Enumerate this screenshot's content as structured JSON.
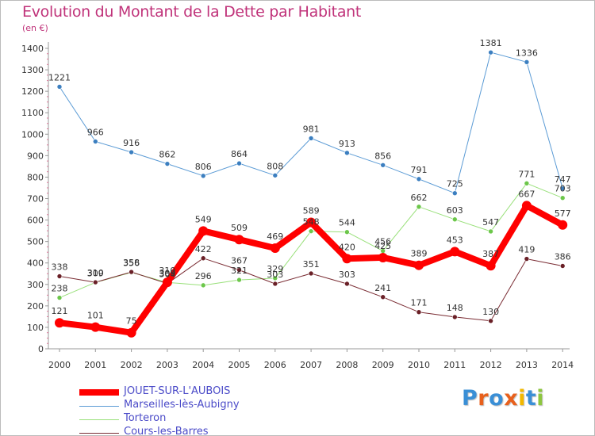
{
  "header": {
    "title": "Evolution du Montant de la Dette par Habitant",
    "unit": "(en €)"
  },
  "logo": {
    "text": "Proxiti",
    "colors": [
      "#3a8fd6",
      "#e8601c",
      "#3a8fd6",
      "#e8601c",
      "#f2b800",
      "#3a8fd6",
      "#8dc63f"
    ]
  },
  "chart_data": {
    "type": "line",
    "title": "Evolution du Montant de la Dette par Habitant",
    "ylabel": "(en €)",
    "xlabel": "",
    "ylim": [
      0,
      1400
    ],
    "yticks": [
      0,
      100,
      200,
      300,
      400,
      500,
      600,
      700,
      800,
      900,
      1000,
      1100,
      1200,
      1300,
      1400
    ],
    "grid": false,
    "legend_position": "bottom-left",
    "categories": [
      "2000",
      "2001",
      "2002",
      "2003",
      "2004",
      "2005",
      "2006",
      "2007",
      "2008",
      "2009",
      "2010",
      "2011",
      "2012",
      "2013",
      "2014"
    ],
    "series": [
      {
        "name": "Marseilles-lès-Aubigny",
        "color": "#5b9bd5",
        "dot": "#3c7fc0",
        "width": 1,
        "values": [
          1221,
          966,
          916,
          862,
          806,
          864,
          808,
          981,
          913,
          856,
          791,
          725,
          1381,
          1336,
          747
        ]
      },
      {
        "name": "Torteron",
        "color": "#99e07a",
        "dot": "#6cc74a",
        "width": 1,
        "values": [
          238,
          309,
          356,
          309,
          296,
          321,
          329,
          548,
          544,
          456,
          662,
          603,
          547,
          771,
          703
        ]
      },
      {
        "name": "Cours-les-Barres",
        "color": "#7a2c33",
        "dot": "#6a2027",
        "width": 1,
        "values": [
          338,
          310,
          358,
          304,
          422,
          367,
          303,
          351,
          303,
          241,
          171,
          148,
          130,
          419,
          386
        ]
      },
      {
        "name": "JOUET-SUR-L'AUBOIS",
        "color": "#ff0000",
        "dot": "#ff0000",
        "width": 8,
        "values": [
          121,
          101,
          75,
          310,
          549,
          509,
          469,
          589,
          420,
          425,
          389,
          453,
          387,
          667,
          577
        ]
      }
    ]
  },
  "legend": [
    {
      "label": "JOUET-SUR-L'AUBOIS",
      "color": "#ff0000",
      "thickness": 8
    },
    {
      "label": "Marseilles-lès-Aubigny",
      "color": "#5b9bd5",
      "thickness": 1
    },
    {
      "label": "Torteron",
      "color": "#99e07a",
      "thickness": 1
    },
    {
      "label": "Cours-les-Barres",
      "color": "#7a2c33",
      "thickness": 1
    }
  ]
}
